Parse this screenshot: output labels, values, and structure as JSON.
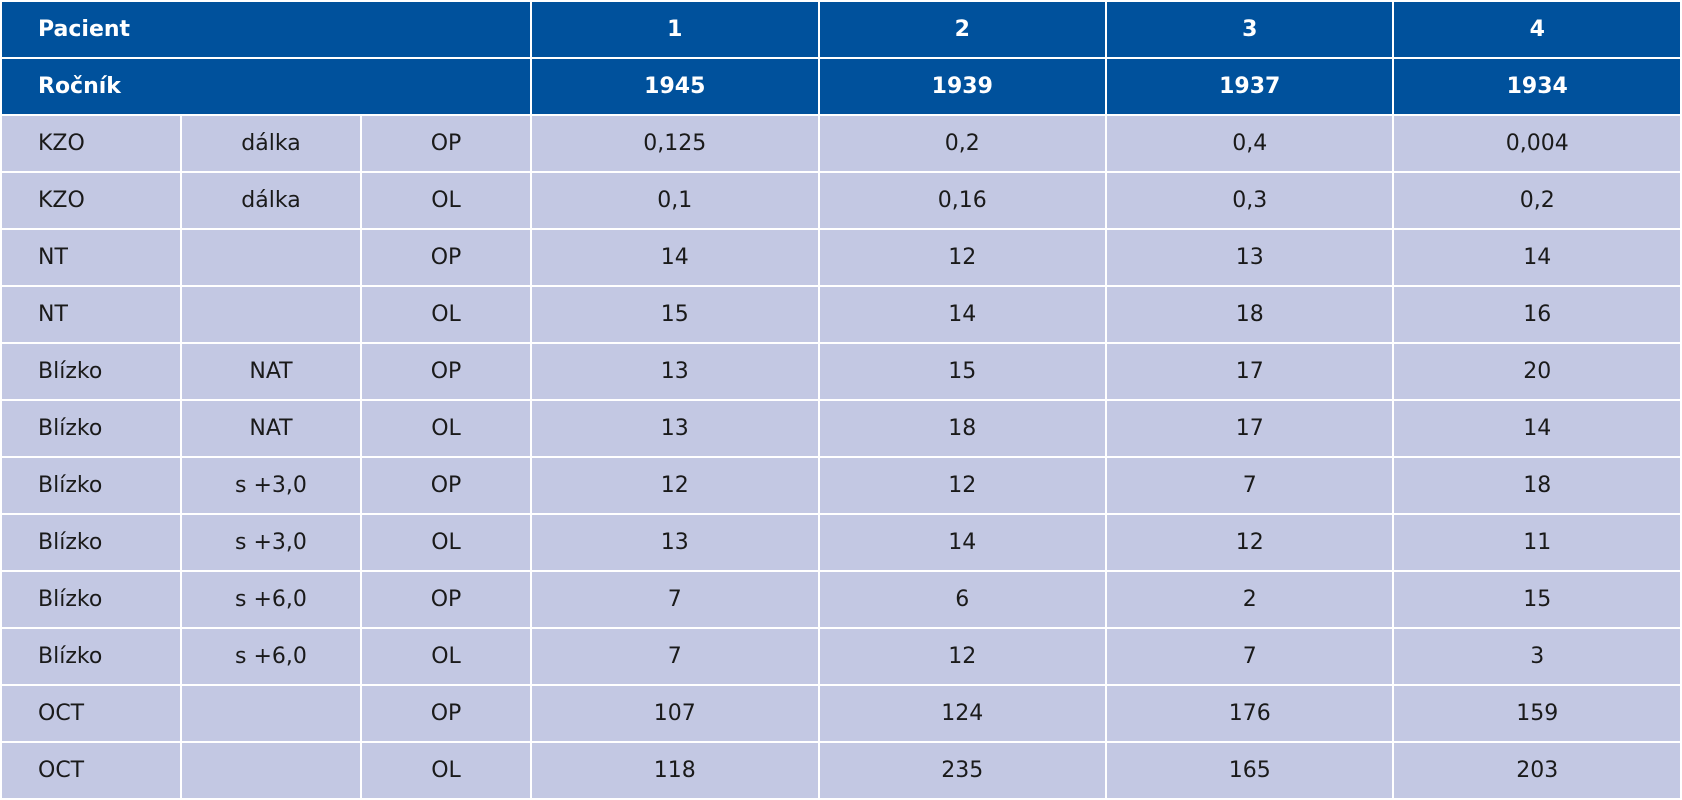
{
  "table": {
    "header_rows": [
      {
        "label": "Pacient",
        "cells": [
          "1",
          "2",
          "3",
          "4"
        ]
      },
      {
        "label": "Ročník",
        "cells": [
          "1945",
          "1939",
          "1937",
          "1934"
        ]
      }
    ],
    "rows": [
      [
        "KZO",
        "dálka",
        "OP",
        "0,125",
        "0,2",
        "0,4",
        "0,004"
      ],
      [
        "KZO",
        "dálka",
        "OL",
        "0,1",
        "0,16",
        "0,3",
        "0,2"
      ],
      [
        "NT",
        null,
        "OP",
        "14",
        "12",
        "13",
        "14"
      ],
      [
        "NT",
        null,
        "OL",
        "15",
        "14",
        "18",
        "16"
      ],
      [
        "Blízko",
        "NAT",
        "OP",
        "13",
        "15",
        "17",
        "20"
      ],
      [
        "Blízko",
        "NAT",
        "OL",
        "13",
        "18",
        "17",
        "14"
      ],
      [
        "Blízko",
        "s +3,0",
        "OP",
        "12",
        "12",
        "7",
        "18"
      ],
      [
        "Blízko",
        "s +3,0",
        "OL",
        "13",
        "14",
        "12",
        "11"
      ],
      [
        "Blízko",
        "s +6,0",
        "OP",
        "7",
        "6",
        "2",
        "15"
      ],
      [
        "Blízko",
        "s +6,0",
        "OL",
        "7",
        "12",
        "7",
        "3"
      ],
      [
        "OCT",
        null,
        "OP",
        "107",
        "124",
        "176",
        "159"
      ],
      [
        "OCT",
        null,
        "OL",
        "118",
        "235",
        "165",
        "203"
      ]
    ]
  }
}
